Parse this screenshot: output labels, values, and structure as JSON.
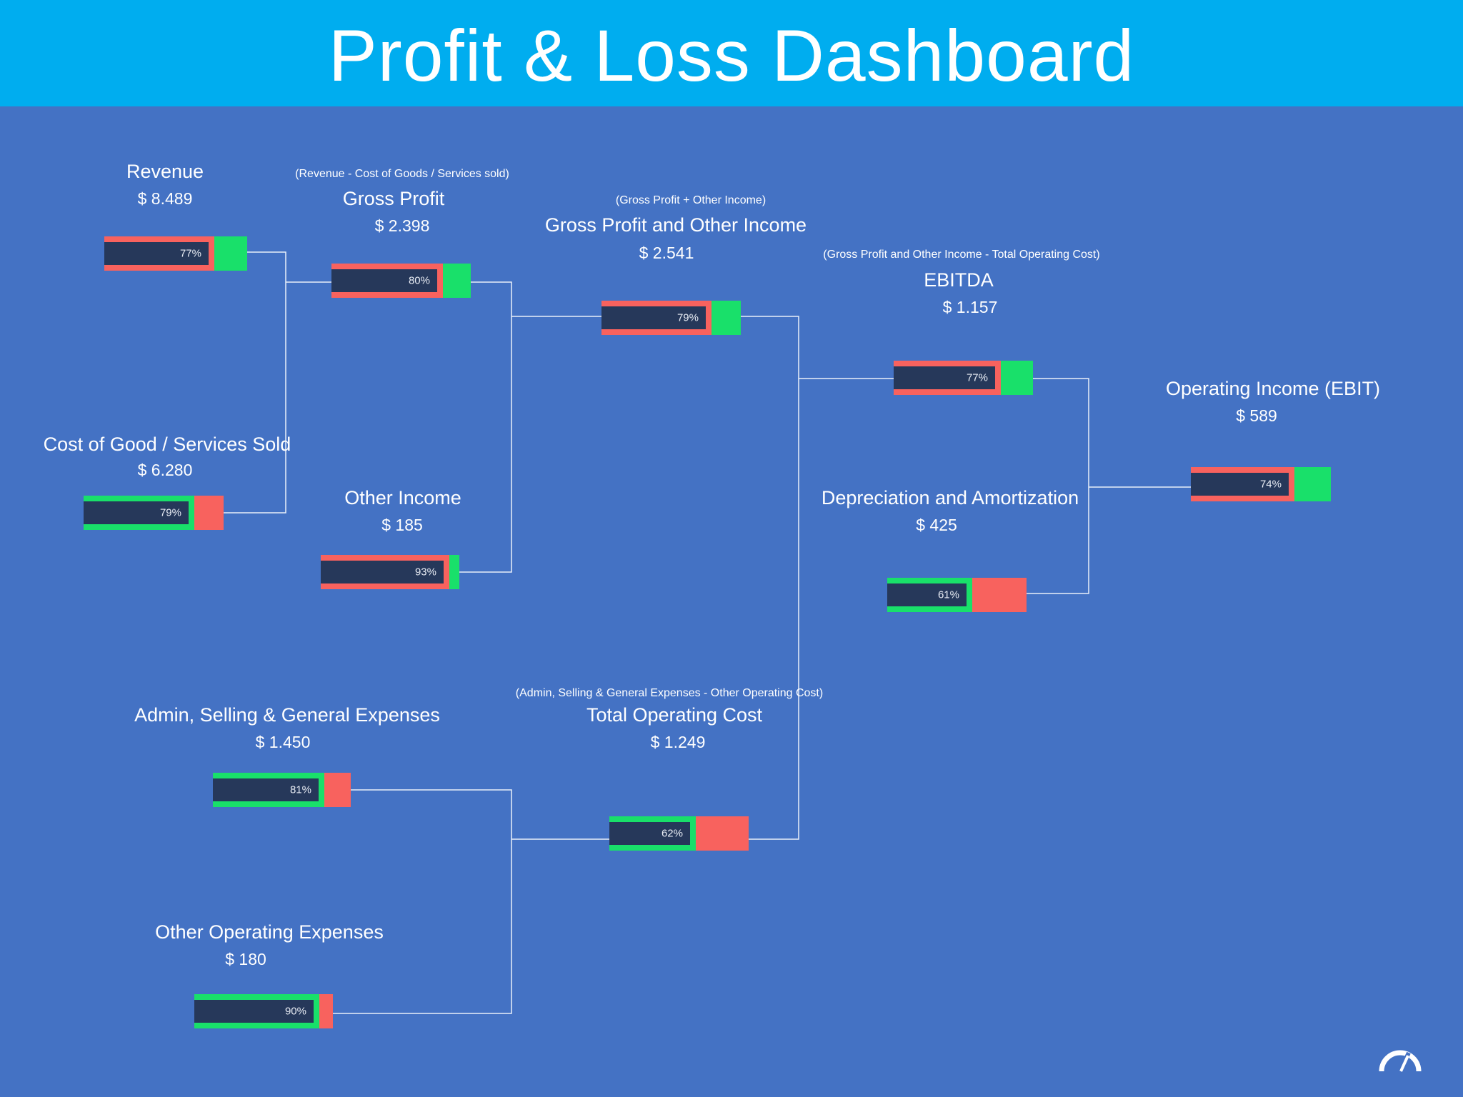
{
  "title": "Profit & Loss Dashboard",
  "colors": {
    "header": "#00ADEF",
    "background": "#4472C4",
    "good": "#19E06A",
    "bad": "#F8625E",
    "inner": "#26385A"
  },
  "cards": {
    "revenue": {
      "name": "Revenue",
      "amount": "$ 8.489",
      "percent": "77%",
      "value": 0.77,
      "kind": "income"
    },
    "gross_profit": {
      "note": "(Revenue - Cost of Goods / Services sold)",
      "name": "Gross Profit",
      "amount": "$ 2.398",
      "percent": "80%",
      "value": 0.8,
      "kind": "income"
    },
    "gp_other": {
      "note": "(Gross Profit + Other Income)",
      "name": "Gross Profit and  Other Income",
      "amount": "$ 2.541",
      "percent": "79%",
      "value": 0.79,
      "kind": "income"
    },
    "ebitda": {
      "note": "(Gross Profit and  Other Income - Total Operating Cost)",
      "name": "EBITDA",
      "amount": "$ 1.157",
      "percent": "77%",
      "value": 0.77,
      "kind": "income"
    },
    "ebit": {
      "name": "Operating Income (EBIT)",
      "amount": "$ 589",
      "percent": "74%",
      "value": 0.74,
      "kind": "income"
    },
    "cogs": {
      "name": "Cost of Good / Services Sold",
      "amount": "$ 6.280",
      "percent": "79%",
      "value": 0.79,
      "kind": "cost"
    },
    "other_income": {
      "name": "Other Income",
      "amount": "$ 185",
      "percent": "93%",
      "value": 0.93,
      "kind": "income"
    },
    "depreciation": {
      "name": "Depreciation and Amortization",
      "amount": "$ 425",
      "percent": "61%",
      "value": 0.61,
      "kind": "cost"
    },
    "admin": {
      "name": "Admin, Selling & General Expenses",
      "amount": "$ 1.450",
      "percent": "81%",
      "value": 0.81,
      "kind": "cost"
    },
    "total_operating": {
      "note": "(Admin, Selling & General Expenses - Other Operating Cost)",
      "name": "Total Operating Cost",
      "amount": "$ 1.249",
      "percent": "62%",
      "value": 0.62,
      "kind": "cost"
    },
    "other_operating": {
      "name": "Other Operating Expenses",
      "amount": "$ 180",
      "percent": "90%",
      "value": 0.9,
      "kind": "cost"
    }
  },
  "logo": {
    "icon": "speedometer-icon"
  }
}
